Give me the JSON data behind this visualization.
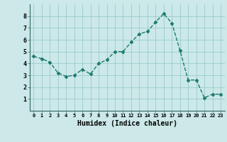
{
  "x": [
    0,
    1,
    2,
    3,
    4,
    5,
    6,
    7,
    8,
    9,
    10,
    11,
    12,
    13,
    14,
    15,
    16,
    17,
    18,
    19,
    20,
    21,
    22,
    23
  ],
  "y": [
    4.6,
    4.4,
    4.1,
    3.2,
    2.9,
    3.0,
    3.5,
    3.1,
    4.0,
    4.3,
    5.0,
    5.0,
    5.8,
    6.5,
    6.7,
    7.5,
    8.2,
    7.4,
    5.1,
    2.6,
    2.6,
    1.1,
    1.4,
    1.4
  ],
  "xlabel": "Humidex (Indice chaleur)",
  "ylim": [
    0,
    9
  ],
  "xlim": [
    -0.5,
    23.5
  ],
  "yticks": [
    1,
    2,
    3,
    4,
    5,
    6,
    7,
    8
  ],
  "xticks": [
    0,
    1,
    2,
    3,
    4,
    5,
    6,
    7,
    8,
    9,
    10,
    11,
    12,
    13,
    14,
    15,
    16,
    17,
    18,
    19,
    20,
    21,
    22,
    23
  ],
  "line_color": "#1a7a6e",
  "marker_color": "#1a7a6e",
  "bg_color": "#cce8e8",
  "grid_color": "#99cccc"
}
